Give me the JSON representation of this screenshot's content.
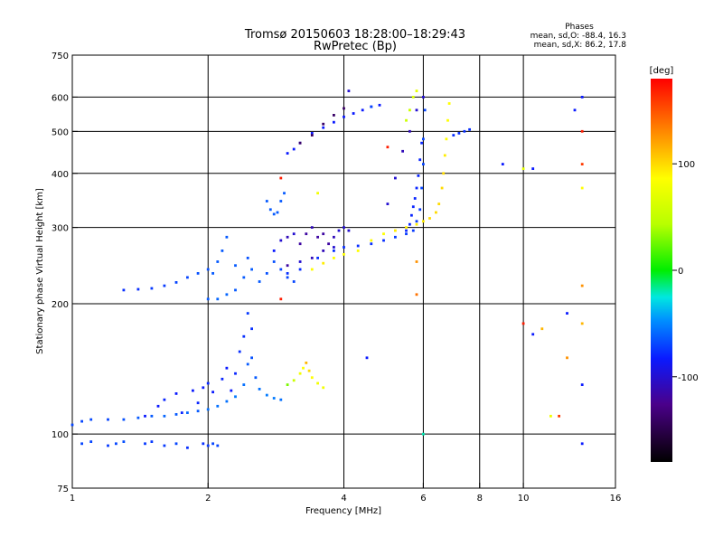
{
  "title_line1": "Tromsø 20150603 18:28:00–18:29:43",
  "title_line2": "RwPretec (Bp)",
  "phases": {
    "heading": "Phases",
    "line_o": "mean, sd,O: -88.4, 16.3",
    "line_x": "mean, sd,X: 86.2, 17.8"
  },
  "colorbar": {
    "label": "[deg]",
    "range": [
      -180,
      180
    ],
    "ticks": [
      {
        "value": 100,
        "label": "100"
      },
      {
        "value": 0,
        "label": "0"
      },
      {
        "value": -100,
        "label": "-100"
      }
    ]
  },
  "chart_data": {
    "type": "scatter",
    "xlabel": "Frequency [MHz]",
    "ylabel": "Stationary phase Virtual Height [km]",
    "x_scale": "log",
    "y_scale": "log",
    "xlim": [
      1,
      16
    ],
    "ylim": [
      75,
      750
    ],
    "grid": true,
    "x_ticks": [
      {
        "value": 1,
        "label": "1",
        "grid": false
      },
      {
        "value": 2,
        "label": "2",
        "grid": true
      },
      {
        "value": 4,
        "label": "4",
        "grid": true
      },
      {
        "value": 6,
        "label": "6",
        "grid": true
      },
      {
        "value": 8,
        "label": "8",
        "grid": true
      },
      {
        "value": 10,
        "label": "10",
        "grid": true
      },
      {
        "value": 16,
        "label": "16",
        "grid": false
      }
    ],
    "y_ticks": [
      {
        "value": 75,
        "label": "75",
        "grid": false
      },
      {
        "value": 100,
        "label": "100",
        "grid": true
      },
      {
        "value": 200,
        "label": "200",
        "grid": true
      },
      {
        "value": 300,
        "label": "300",
        "grid": true
      },
      {
        "value": 400,
        "label": "400",
        "grid": true
      },
      {
        "value": 500,
        "label": "500",
        "grid": true
      },
      {
        "value": 600,
        "label": "600",
        "grid": true
      },
      {
        "value": 750,
        "label": "750",
        "grid": false
      }
    ],
    "phase_color_scale": "phase in degrees; -180 black, -100 blue, 0 green, 100 yellow, 180 red",
    "traces": [
      {
        "points": [
          [
            1.0,
            105,
            -80
          ],
          [
            1.05,
            107,
            -80
          ],
          [
            1.1,
            108,
            -78
          ],
          [
            1.2,
            108,
            -80
          ],
          [
            1.3,
            108,
            -75
          ],
          [
            1.4,
            109,
            -70
          ],
          [
            1.5,
            110,
            -70
          ],
          [
            1.6,
            110,
            -65
          ],
          [
            1.7,
            111,
            -70
          ],
          [
            1.8,
            112,
            -65
          ],
          [
            1.9,
            113,
            -70
          ],
          [
            2.0,
            114,
            -60
          ],
          [
            2.1,
            116,
            -60
          ],
          [
            2.2,
            119,
            -60
          ],
          [
            2.3,
            122,
            -55
          ],
          [
            2.4,
            130,
            -60
          ],
          [
            2.45,
            145,
            -70
          ],
          [
            2.5,
            150,
            -75
          ],
          [
            2.55,
            135,
            -70
          ],
          [
            2.6,
            127,
            -60
          ],
          [
            2.7,
            123,
            -55
          ],
          [
            2.8,
            121,
            -55
          ],
          [
            2.9,
            120,
            -60
          ]
        ]
      },
      {
        "points": [
          [
            1.45,
            110,
            -100
          ],
          [
            1.55,
            116,
            -100
          ],
          [
            1.6,
            120,
            -95
          ],
          [
            1.7,
            124,
            -100
          ],
          [
            1.75,
            112,
            -95
          ],
          [
            1.85,
            126,
            -100
          ],
          [
            1.9,
            118,
            -95
          ],
          [
            1.95,
            128,
            -100
          ],
          [
            2.0,
            131,
            -95
          ],
          [
            2.05,
            125,
            -100
          ],
          [
            2.15,
            134,
            -95
          ],
          [
            2.2,
            142,
            -100
          ],
          [
            2.25,
            126,
            -100
          ],
          [
            2.3,
            138,
            -95
          ],
          [
            2.35,
            155,
            -90
          ],
          [
            2.4,
            168,
            -90
          ],
          [
            2.45,
            190,
            -85
          ],
          [
            2.5,
            175,
            -90
          ]
        ]
      },
      {
        "points": [
          [
            1.05,
            95,
            -80
          ],
          [
            1.1,
            96,
            -80
          ],
          [
            1.2,
            94,
            -85
          ],
          [
            1.25,
            95,
            -80
          ],
          [
            1.3,
            96,
            -75
          ],
          [
            1.45,
            95,
            -85
          ],
          [
            1.5,
            96,
            -85
          ],
          [
            1.6,
            94,
            -85
          ],
          [
            1.7,
            95,
            -80
          ],
          [
            1.8,
            93,
            -90
          ],
          [
            1.95,
            95,
            -90
          ],
          [
            2.0,
            94,
            -85
          ],
          [
            2.05,
            95,
            -80
          ],
          [
            2.1,
            94,
            -80
          ]
        ]
      },
      {
        "points": [
          [
            3.0,
            130,
            30
          ],
          [
            3.1,
            133,
            60
          ],
          [
            3.2,
            138,
            90
          ],
          [
            3.25,
            142,
            100
          ],
          [
            3.3,
            146,
            120
          ],
          [
            3.35,
            140,
            110
          ],
          [
            3.4,
            135,
            100
          ],
          [
            3.5,
            131,
            90
          ],
          [
            3.6,
            128,
            90
          ]
        ]
      },
      {
        "points": [
          [
            1.3,
            215,
            -90
          ],
          [
            1.4,
            216,
            -90
          ],
          [
            1.5,
            217,
            -85
          ],
          [
            1.6,
            220,
            -85
          ],
          [
            1.7,
            224,
            -80
          ],
          [
            1.8,
            230,
            -80
          ],
          [
            1.9,
            235,
            -75
          ],
          [
            2.0,
            240,
            -75
          ],
          [
            2.05,
            235,
            -70
          ],
          [
            2.1,
            250,
            -70
          ],
          [
            2.15,
            265,
            -70
          ],
          [
            2.2,
            285,
            -70
          ],
          [
            2.0,
            205,
            -70
          ],
          [
            2.1,
            205,
            -65
          ],
          [
            2.2,
            210,
            -65
          ],
          [
            2.3,
            215,
            -70
          ]
        ]
      },
      {
        "points": [
          [
            2.3,
            245,
            -70
          ],
          [
            2.4,
            230,
            -70
          ],
          [
            2.45,
            255,
            -75
          ],
          [
            2.5,
            240,
            -70
          ],
          [
            2.6,
            225,
            -70
          ],
          [
            2.7,
            235,
            -75
          ],
          [
            2.8,
            250,
            -75
          ],
          [
            2.9,
            240,
            -80
          ],
          [
            3.0,
            230,
            -80
          ],
          [
            3.1,
            225,
            -80
          ]
        ]
      },
      {
        "points": [
          [
            2.8,
            265,
            -100
          ],
          [
            2.9,
            280,
            -110
          ],
          [
            3.0,
            285,
            -115
          ],
          [
            3.1,
            290,
            -110
          ],
          [
            3.2,
            275,
            -120
          ],
          [
            3.3,
            290,
            -120
          ],
          [
            3.4,
            300,
            -115
          ],
          [
            3.5,
            285,
            -120
          ],
          [
            3.6,
            290,
            -120
          ],
          [
            3.7,
            275,
            -120
          ],
          [
            3.8,
            285,
            -115
          ],
          [
            3.9,
            295,
            -110
          ],
          [
            4.0,
            300,
            -110
          ],
          [
            4.1,
            295,
            -110
          ],
          [
            3.0,
            245,
            -120
          ],
          [
            3.2,
            250,
            -110
          ],
          [
            3.4,
            255,
            -115
          ],
          [
            3.6,
            265,
            -115
          ],
          [
            3.8,
            270,
            -110
          ]
        ]
      },
      {
        "points": [
          [
            3.0,
            235,
            -90
          ],
          [
            3.2,
            240,
            -90
          ],
          [
            3.5,
            255,
            -90
          ],
          [
            3.8,
            265,
            -90
          ],
          [
            4.0,
            270,
            -90
          ],
          [
            4.3,
            272,
            -90
          ],
          [
            4.6,
            275,
            -90
          ],
          [
            4.9,
            280,
            -90
          ],
          [
            5.2,
            285,
            -85
          ],
          [
            5.5,
            290,
            -85
          ],
          [
            5.7,
            295,
            -85
          ],
          [
            5.8,
            310,
            -85
          ],
          [
            5.9,
            330,
            -85
          ],
          [
            5.95,
            370,
            -80
          ],
          [
            6.0,
            420,
            -80
          ],
          [
            6.0,
            480,
            -80
          ],
          [
            6.05,
            560,
            -80
          ]
        ]
      },
      {
        "points": [
          [
            5.5,
            295,
            -95
          ],
          [
            5.6,
            305,
            -95
          ],
          [
            5.65,
            320,
            -95
          ],
          [
            5.7,
            335,
            -95
          ],
          [
            5.75,
            350,
            -95
          ],
          [
            5.8,
            370,
            -95
          ],
          [
            5.85,
            395,
            -95
          ],
          [
            5.9,
            430,
            -95
          ],
          [
            5.95,
            470,
            -95
          ]
        ]
      },
      {
        "points": [
          [
            5.0,
            340,
            -110
          ],
          [
            5.2,
            390,
            -110
          ],
          [
            5.4,
            450,
            -115
          ],
          [
            5.6,
            500,
            -115
          ],
          [
            5.8,
            560,
            -110
          ],
          [
            6.0,
            600,
            -110
          ]
        ]
      },
      {
        "points": [
          [
            3.4,
            240,
            100
          ],
          [
            3.6,
            248,
            105
          ],
          [
            3.8,
            255,
            100
          ],
          [
            4.0,
            260,
            100
          ],
          [
            4.3,
            265,
            100
          ],
          [
            4.6,
            280,
            100
          ],
          [
            4.9,
            290,
            100
          ],
          [
            5.2,
            295,
            105
          ],
          [
            5.5,
            300,
            105
          ],
          [
            5.8,
            305,
            105
          ],
          [
            6.0,
            310,
            105
          ],
          [
            6.2,
            315,
            110
          ],
          [
            6.4,
            325,
            110
          ],
          [
            6.5,
            340,
            110
          ],
          [
            6.6,
            370,
            110
          ],
          [
            6.65,
            400,
            110
          ],
          [
            6.7,
            440,
            105
          ],
          [
            6.75,
            480,
            100
          ],
          [
            6.8,
            530,
            100
          ],
          [
            6.85,
            580,
            100
          ]
        ]
      },
      {
        "points": [
          [
            3.0,
            445,
            -100
          ],
          [
            3.1,
            455,
            -100
          ],
          [
            3.2,
            470,
            -100
          ],
          [
            3.4,
            495,
            -100
          ],
          [
            3.6,
            510,
            -100
          ],
          [
            3.8,
            525,
            -100
          ],
          [
            4.0,
            540,
            -100
          ],
          [
            4.2,
            550,
            -100
          ],
          [
            4.4,
            560,
            -100
          ],
          [
            4.6,
            570,
            -100
          ],
          [
            4.8,
            575,
            -100
          ]
        ]
      },
      {
        "points": [
          [
            3.2,
            470,
            -140
          ],
          [
            3.4,
            490,
            -140
          ],
          [
            3.6,
            520,
            -140
          ],
          [
            3.8,
            545,
            -140
          ],
          [
            4.0,
            565,
            -140
          ]
        ]
      },
      {
        "points": [
          [
            2.7,
            345,
            -70
          ],
          [
            2.75,
            330,
            -70
          ],
          [
            2.8,
            322,
            -70
          ],
          [
            2.85,
            325,
            -70
          ],
          [
            2.9,
            345,
            -70
          ],
          [
            2.95,
            360,
            -70
          ]
        ]
      },
      {
        "points": [
          [
            5.5,
            530,
            60
          ],
          [
            5.6,
            560,
            60
          ],
          [
            5.7,
            600,
            70
          ],
          [
            5.8,
            620,
            80
          ]
        ]
      },
      {
        "points": [
          [
            7.0,
            490,
            -90
          ],
          [
            7.2,
            495,
            -90
          ],
          [
            7.4,
            500,
            -90
          ],
          [
            7.6,
            505,
            -90
          ]
        ]
      },
      {
        "points": [
          [
            10.0,
            180,
            170
          ],
          [
            10.5,
            170,
            -100
          ],
          [
            11.0,
            175,
            120
          ],
          [
            11.5,
            110,
            90
          ],
          [
            12.0,
            110,
            160
          ],
          [
            12.5,
            190,
            -100
          ],
          [
            12.5,
            150,
            130
          ],
          [
            13.0,
            560,
            -100
          ],
          [
            13.5,
            220,
            130
          ],
          [
            13.5,
            600,
            -100
          ],
          [
            13.5,
            500,
            170
          ],
          [
            13.5,
            95,
            -100
          ],
          [
            13.5,
            130,
            -100
          ],
          [
            13.5,
            420,
            160
          ],
          [
            13.5,
            370,
            100
          ],
          [
            13.5,
            180,
            120
          ],
          [
            9.0,
            420,
            -100
          ],
          [
            10.0,
            410,
            80
          ],
          [
            10.5,
            410,
            -100
          ],
          [
            4.1,
            620,
            -110
          ],
          [
            4.6,
            570,
            -80
          ],
          [
            2.9,
            390,
            170
          ],
          [
            2.9,
            205,
            170
          ],
          [
            3.5,
            360,
            90
          ],
          [
            5.0,
            460,
            170
          ],
          [
            5.8,
            250,
            130
          ],
          [
            5.8,
            210,
            140
          ],
          [
            4.5,
            150,
            -100
          ],
          [
            6.0,
            100,
            -20
          ]
        ]
      }
    ]
  }
}
